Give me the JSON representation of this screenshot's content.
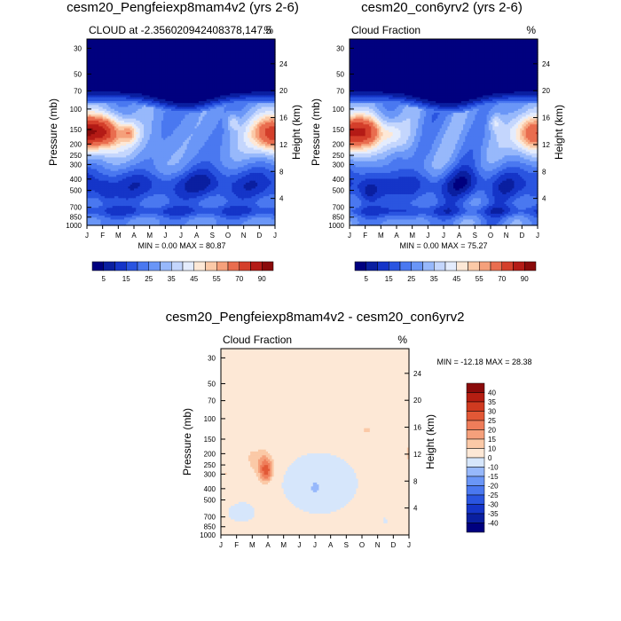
{
  "chart_data": [
    {
      "type": "heatmap",
      "title": "cesm20_Pengfeiexp8mam4v2 (yrs 2-6)",
      "left_label": "CLOUD at -2.356020942408378,147.5",
      "right_label": "%",
      "ylabel": "Pressure (mb)",
      "ylabel_right": "Height (km)",
      "x": [
        "J",
        "F",
        "M",
        "A",
        "M",
        "J",
        "J",
        "A",
        "S",
        "O",
        "N",
        "D",
        "J"
      ],
      "y_ticks": [
        30,
        50,
        70,
        100,
        150,
        200,
        250,
        300,
        400,
        500,
        700,
        850,
        1000
      ],
      "y_right_ticks": [
        4,
        8,
        12,
        16,
        20,
        24
      ],
      "stats_label": "MIN =  0.00 MAX =  80.87",
      "levels": [
        5,
        10,
        15,
        20,
        25,
        30,
        35,
        40,
        45,
        50,
        55,
        60,
        70,
        80,
        90
      ],
      "colorbar_labels": [
        "5",
        "15",
        "25",
        "35",
        "45",
        "55",
        "70",
        "90"
      ],
      "colors": [
        "#00007f",
        "#0a1fa0",
        "#1535c8",
        "#2a55e0",
        "#4a78f0",
        "#6a96f7",
        "#97b8fb",
        "#c4d6fd",
        "#e4ecfd",
        "#fde8d6",
        "#fbc9a7",
        "#f5a07b",
        "#e96d4f",
        "#d43f2b",
        "#b41b16",
        "#8a0a0a"
      ],
      "min": 0.0,
      "max": 80.87
    },
    {
      "type": "heatmap",
      "title": "cesm20_con6yrv2 (yrs 2-6)",
      "left_label": "Cloud Fraction",
      "right_label": "%",
      "ylabel": "Pressure (mb)",
      "ylabel_right": "Height (km)",
      "x": [
        "J",
        "F",
        "M",
        "A",
        "M",
        "J",
        "J",
        "A",
        "S",
        "O",
        "N",
        "D",
        "J"
      ],
      "y_ticks": [
        30,
        50,
        70,
        100,
        150,
        200,
        250,
        300,
        400,
        500,
        700,
        850,
        1000
      ],
      "y_right_ticks": [
        4,
        8,
        12,
        16,
        20,
        24
      ],
      "stats_label": "MIN =  0.00 MAX =  75.27",
      "levels": [
        5,
        10,
        15,
        20,
        25,
        30,
        35,
        40,
        45,
        50,
        55,
        60,
        70,
        80,
        90
      ],
      "colorbar_labels": [
        "5",
        "15",
        "25",
        "35",
        "45",
        "55",
        "70",
        "90"
      ],
      "colors": [
        "#00007f",
        "#0a1fa0",
        "#1535c8",
        "#2a55e0",
        "#4a78f0",
        "#6a96f7",
        "#97b8fb",
        "#c4d6fd",
        "#e4ecfd",
        "#fde8d6",
        "#fbc9a7",
        "#f5a07b",
        "#e96d4f",
        "#d43f2b",
        "#b41b16",
        "#8a0a0a"
      ],
      "min": 0.0,
      "max": 75.27
    },
    {
      "type": "heatmap",
      "title": "cesm20_Pengfeiexp8mam4v2 - cesm20_con6yrv2",
      "left_label": "Cloud Fraction",
      "right_label": "%",
      "ylabel": "Pressure (mb)",
      "ylabel_right": "Height (km)",
      "x": [
        "J",
        "F",
        "M",
        "A",
        "M",
        "J",
        "J",
        "A",
        "S",
        "O",
        "N",
        "D",
        "J"
      ],
      "y_ticks": [
        30,
        50,
        70,
        100,
        150,
        200,
        250,
        300,
        400,
        500,
        700,
        850,
        1000
      ],
      "y_right_ticks": [
        4,
        8,
        12,
        16,
        20,
        24
      ],
      "stats_label": "MIN = -12.18 MAX =  28.38",
      "levels": [
        -40,
        -35,
        -30,
        -25,
        -20,
        -15,
        -10,
        0,
        10,
        15,
        20,
        25,
        30,
        35,
        40
      ],
      "colorbar_labels": [
        "40",
        "35",
        "30",
        "25",
        "20",
        "15",
        "10",
        "0",
        "-10",
        "-15",
        "-20",
        "-25",
        "-30",
        "-35",
        "-40"
      ],
      "colors": [
        "#00007f",
        "#0a1fa0",
        "#1535c8",
        "#2a55e0",
        "#4a78f0",
        "#6a96f7",
        "#97b8fb",
        "#d6e6fb",
        "#fde8d6",
        "#fbc9a7",
        "#f5a07b",
        "#ef7d5a",
        "#e25836",
        "#d03a20",
        "#b51e12",
        "#8a0a0a"
      ],
      "min": -12.18,
      "max": 28.38
    }
  ]
}
